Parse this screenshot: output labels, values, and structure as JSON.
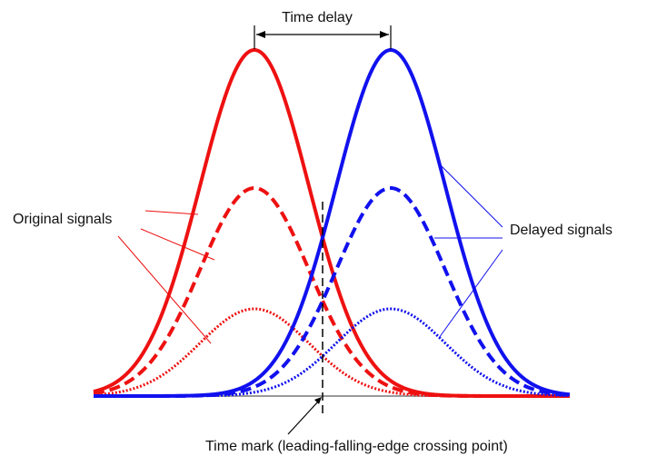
{
  "labels": {
    "time_delay": "Time delay",
    "original_signals": "Original signals",
    "delayed_signals": "Delayed signals",
    "time_mark": "Time mark (leading-falling-edge crossing point)"
  },
  "colors": {
    "original": "#ee1111",
    "delayed": "#1111ee",
    "baseline": "#999999",
    "annotation": "#000000"
  },
  "pulses": {
    "original_peak_x": 280,
    "delayed_peak_x": 430,
    "baseline_y": 436,
    "sigma": 60,
    "full_peak_y": 55,
    "dashed_peak_y": 207,
    "dotted_peak_y": 340
  }
}
